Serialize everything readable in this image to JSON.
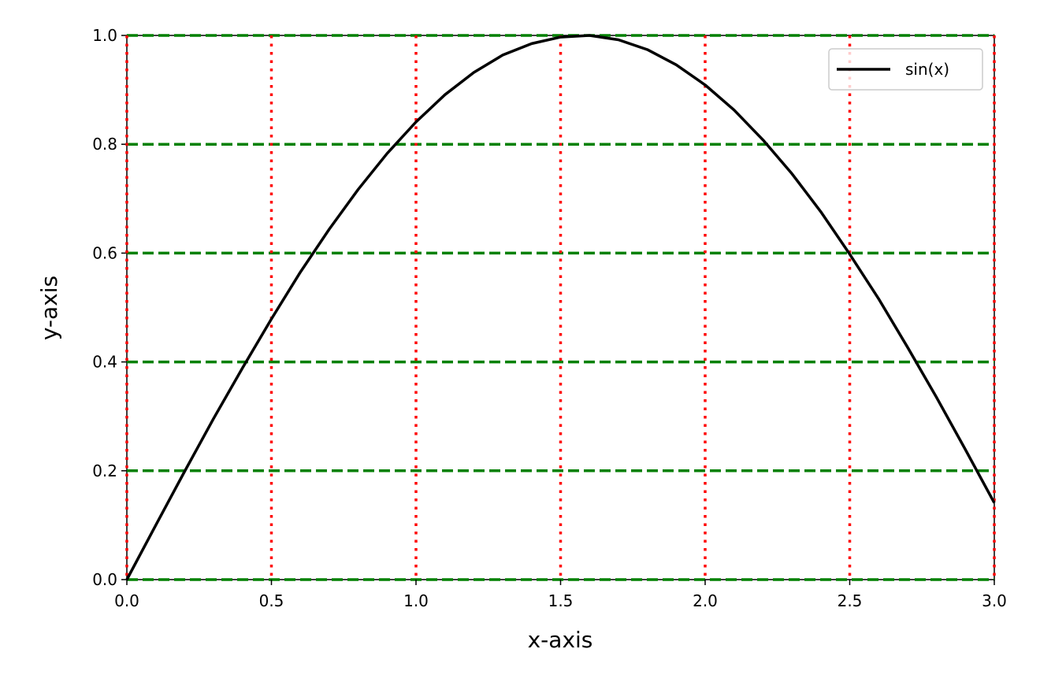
{
  "chart_data": {
    "type": "line",
    "x_label": "x-axis",
    "y_label": "y-axis",
    "x": [
      0,
      0.1,
      0.2,
      0.3,
      0.4,
      0.5,
      0.6,
      0.7,
      0.8,
      0.9,
      1.0,
      1.1,
      1.2,
      1.3,
      1.4,
      1.5,
      1.6,
      1.7,
      1.8,
      1.9,
      2.0,
      2.1,
      2.2,
      2.3,
      2.4,
      2.5,
      2.6,
      2.7,
      2.8,
      2.9,
      3.0
    ],
    "series": [
      {
        "name": "sin(x)",
        "color": "#000000",
        "values": [
          0,
          0.1,
          0.199,
          0.296,
          0.389,
          0.479,
          0.565,
          0.644,
          0.717,
          0.783,
          0.841,
          0.891,
          0.932,
          0.964,
          0.985,
          0.997,
          1.0,
          0.992,
          0.974,
          0.946,
          0.909,
          0.863,
          0.808,
          0.746,
          0.676,
          0.598,
          0.516,
          0.427,
          0.335,
          0.239,
          0.141
        ]
      }
    ],
    "xlim": [
      0,
      3
    ],
    "ylim": [
      0,
      1
    ],
    "xticks": [
      {
        "value": 0,
        "label": "0.0"
      },
      0.5,
      {
        "value": 1,
        "label": "1.0"
      },
      1.5,
      {
        "value": 2,
        "label": "2.0"
      },
      2.5,
      {
        "value": 3,
        "label": "3.0"
      }
    ],
    "yticks": [
      {
        "value": 0,
        "label": "0.0"
      },
      0.2,
      0.4,
      0.6,
      0.8,
      {
        "value": 1,
        "label": "1.0"
      }
    ],
    "xgrid": {
      "color": "#ff0000",
      "style": "dotted"
    },
    "ygrid": {
      "color": "#008000",
      "style": "dashed"
    },
    "legend": "upper right"
  }
}
